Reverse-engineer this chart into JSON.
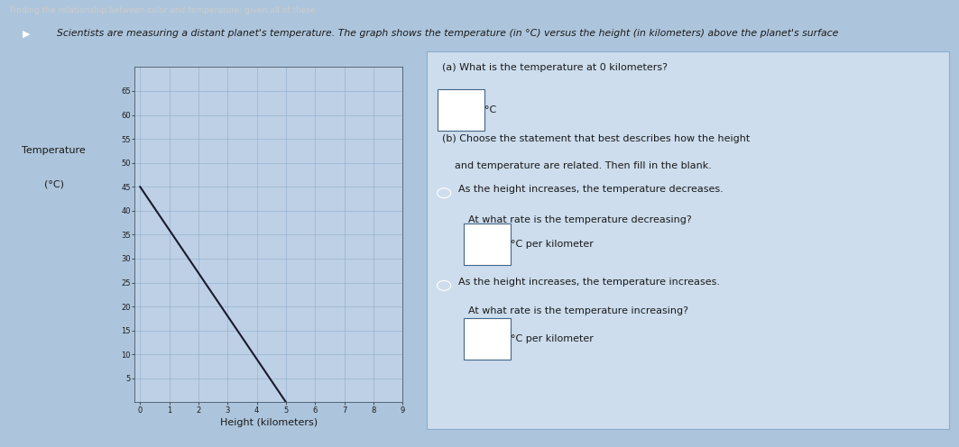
{
  "line_x": [
    0,
    5
  ],
  "line_y": [
    45,
    0
  ],
  "xlim": [
    -0.2,
    9
  ],
  "ylim": [
    0,
    70
  ],
  "xticks": [
    0,
    1,
    2,
    3,
    4,
    5,
    6,
    7,
    8,
    9
  ],
  "yticks": [
    5,
    10,
    15,
    20,
    25,
    30,
    35,
    40,
    45,
    50,
    55,
    60,
    65
  ],
  "xlabel": "Height (kilometers)",
  "ylabel_line1": "Temperature",
  "ylabel_line2": "(°C)",
  "line_color": "#1a1a2e",
  "grid_color": "#8aaac8",
  "bg_color": "#adc5dc",
  "plot_bg_color": "#bdd0e5",
  "header_bg": "#2d3e5a",
  "header_text": "Finding the relationship between color and temperature: given all of these",
  "nav_bg": "#1e2d48",
  "nav_icon": "▶",
  "title_text": "Scientists are measuring a distant planet's temperature. The graph shows the temperature (in °C) versus the height (in kilometers) above the planet's surface",
  "qa_title_a": "(a) What is the temperature at 0 kilometers?",
  "qa_box_a": "°C",
  "qa_title_b": "(b) Choose the statement that best describes how the height",
  "qa_title_b2": "    and temperature are related. Then fill in the blank.",
  "radio1_text": "As the height increases, the temperature decreases.",
  "sub1_text": "At what rate is the temperature decreasing?",
  "box1_text": "°C per kilometer",
  "radio2_text": "As the height increases, the temperature increases.",
  "sub2_text": "At what rate is the temperature increasing?",
  "box2_text": "°C per kilometer",
  "tick_fontsize": 6,
  "label_fontsize": 8,
  "text_color": "#1a1a1a",
  "right_bg": "#cddded",
  "right_border": "#8aabcc",
  "small_fontsize": 8,
  "medium_fontsize": 9
}
